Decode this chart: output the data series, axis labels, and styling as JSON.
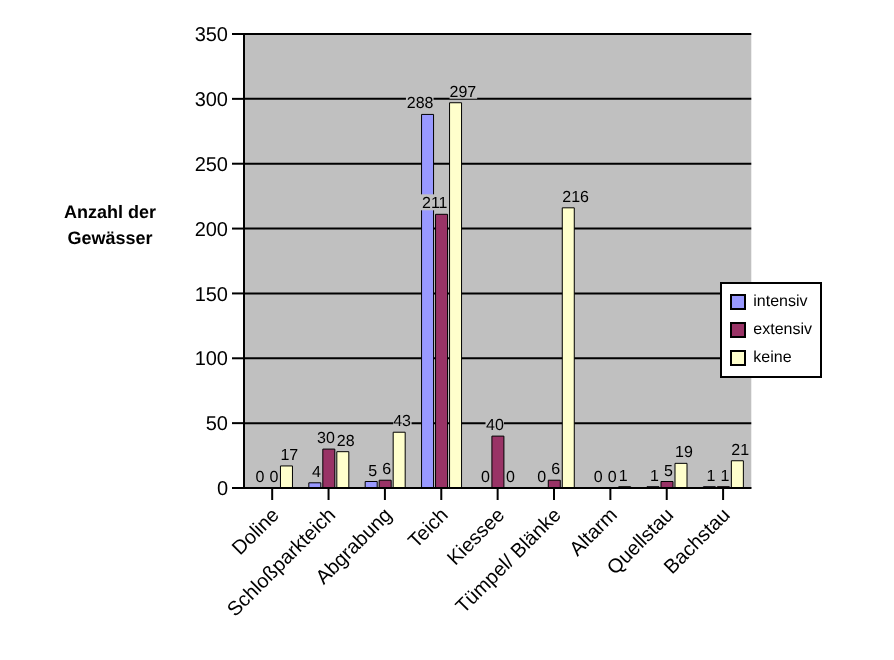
{
  "chart_data": {
    "type": "bar",
    "ylabel": "Anzahl der Gewässer",
    "categories": [
      "Doline",
      "Schloßparkteich",
      "Abgrabung",
      "Teich",
      "Kiessee",
      "Tümpel/ Blänke",
      "Altarm",
      "Quellstau",
      "Bachstau"
    ],
    "series": [
      {
        "name": "intensiv",
        "color": "#9999ff",
        "values": [
          0,
          4,
          5,
          288,
          0,
          0,
          0,
          1,
          1
        ]
      },
      {
        "name": "extensiv",
        "color": "#993366",
        "values": [
          0,
          30,
          6,
          211,
          40,
          6,
          0,
          5,
          1
        ]
      },
      {
        "name": "keine",
        "color": "#ffffcc",
        "values": [
          17,
          28,
          43,
          297,
          0,
          216,
          1,
          19,
          21
        ]
      }
    ],
    "ylim": [
      0,
      350
    ],
    "yticks": [
      0,
      50,
      100,
      150,
      200,
      250,
      300,
      350
    ],
    "grid": "y",
    "legend": "right",
    "data_labels": true
  }
}
